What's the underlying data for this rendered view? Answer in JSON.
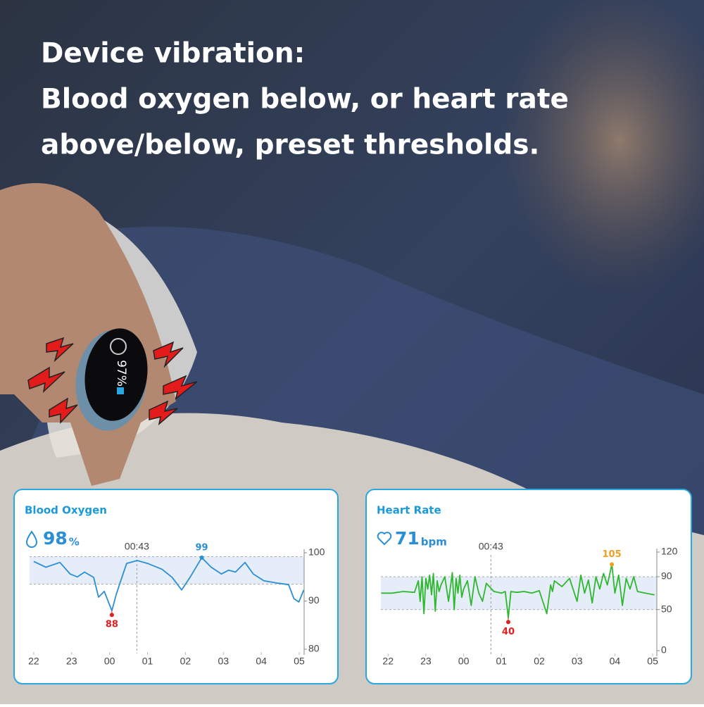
{
  "headline": [
    "Device vibration:",
    "Blood oxygen below, or heart rate",
    "above/below, preset thresholds."
  ],
  "device": {
    "display": "97%"
  },
  "chart_data": [
    {
      "type": "line",
      "title": "Blood Oxygen",
      "reading": {
        "value": 98,
        "unit": "%"
      },
      "cursor": {
        "x": 2.72,
        "label": "00:43"
      },
      "color": "#2b8fd6",
      "band": [
        93.5,
        99.2
      ],
      "band_color": "#e5edf8",
      "x": [
        0,
        0.32,
        0.69,
        0.96,
        1.15,
        1.34,
        1.58,
        1.71,
        1.86,
        1.99,
        2.06,
        2.17,
        2.26,
        2.45,
        2.73,
        3.0,
        3.38,
        3.65,
        3.9,
        4.12,
        4.43,
        4.68,
        4.95,
        5.14,
        5.32,
        5.57,
        5.79,
        6.07,
        6.44,
        6.72,
        6.86,
        6.99,
        7.12
      ],
      "values": [
        98.2,
        97,
        98,
        95.6,
        95,
        96,
        94.9,
        90.8,
        92,
        89.4,
        88,
        91.2,
        93.4,
        97.8,
        98.4,
        97.8,
        96.6,
        94.9,
        92.3,
        94.9,
        99,
        97,
        95.6,
        96.4,
        96,
        98,
        95.6,
        94.2,
        93.7,
        93.4,
        90.5,
        89.8,
        92.3
      ],
      "annotations": [
        {
          "x": 2.06,
          "value": 88,
          "color": "#e02020",
          "pos": "below"
        },
        {
          "x": 4.43,
          "value": 99,
          "color": "#2b8fd6",
          "pos": "above"
        }
      ],
      "xlim": [
        -0.11,
        7.13
      ],
      "ylim": [
        80,
        100
      ],
      "yticks": [
        80,
        90,
        100
      ],
      "xticks": [
        {
          "value": 0,
          "label": "22"
        },
        {
          "value": 1,
          "label": "23"
        },
        {
          "value": 2,
          "label": "00"
        },
        {
          "value": 3,
          "label": "01"
        },
        {
          "value": 4,
          "label": "02"
        },
        {
          "value": 5,
          "label": "03"
        },
        {
          "value": 6,
          "label": "04"
        },
        {
          "value": 7,
          "label": "05"
        }
      ]
    },
    {
      "type": "line",
      "title": "Heart Rate",
      "reading": {
        "value": 71,
        "unit": "bpm"
      },
      "cursor": {
        "x": 2.72,
        "label": "00:43"
      },
      "color": "#2eb82e",
      "band": [
        50,
        90
      ],
      "band_color": "#e5edf8",
      "x": [
        -0.18,
        0.1,
        0.4,
        0.7,
        0.8,
        0.85,
        0.9,
        0.95,
        1.0,
        1.05,
        1.1,
        1.15,
        1.2,
        1.25,
        1.3,
        1.35,
        1.4,
        1.5,
        1.6,
        1.7,
        1.75,
        1.8,
        1.85,
        1.9,
        1.95,
        2.0,
        2.1,
        2.2,
        2.3,
        2.4,
        2.5,
        2.6,
        2.8,
        3.0,
        3.1,
        3.18,
        3.25,
        3.4,
        3.6,
        3.8,
        4.0,
        4.2,
        4.3,
        4.35,
        4.4,
        4.6,
        4.8,
        5.0,
        5.1,
        5.2,
        5.3,
        5.4,
        5.5,
        5.6,
        5.7,
        5.8,
        5.92,
        6.0,
        6.1,
        6.2,
        6.3,
        6.4,
        6.5,
        6.6,
        6.8,
        7.05
      ],
      "values": [
        70,
        70,
        72,
        71,
        85,
        60,
        90,
        45,
        88,
        75,
        92,
        68,
        94,
        48,
        85,
        72,
        80,
        90,
        60,
        95,
        50,
        88,
        70,
        92,
        65,
        75,
        85,
        55,
        90,
        70,
        60,
        82,
        72,
        70,
        72,
        40,
        72,
        71,
        72,
        70,
        73,
        45,
        80,
        72,
        85,
        78,
        88,
        60,
        92,
        70,
        86,
        58,
        90,
        75,
        94,
        80,
        105,
        70,
        92,
        55,
        88,
        75,
        90,
        72,
        70,
        68
      ],
      "annotations": [
        {
          "x": 3.18,
          "value": 40,
          "color": "#e02020",
          "pos": "below"
        },
        {
          "x": 5.92,
          "value": 105,
          "color": "#f0a020",
          "pos": "above"
        }
      ],
      "xlim": [
        -0.19,
        7.11
      ],
      "ylim": [
        0,
        120
      ],
      "yticks": [
        0,
        50,
        90,
        120
      ],
      "xticks": [
        {
          "value": 0,
          "label": "22"
        },
        {
          "value": 1,
          "label": "23"
        },
        {
          "value": 2,
          "label": "00"
        },
        {
          "value": 3,
          "label": "01"
        },
        {
          "value": 4,
          "label": "02"
        },
        {
          "value": 5,
          "label": "03"
        },
        {
          "value": 6,
          "label": "04"
        },
        {
          "value": 7,
          "label": "05"
        }
      ]
    }
  ]
}
